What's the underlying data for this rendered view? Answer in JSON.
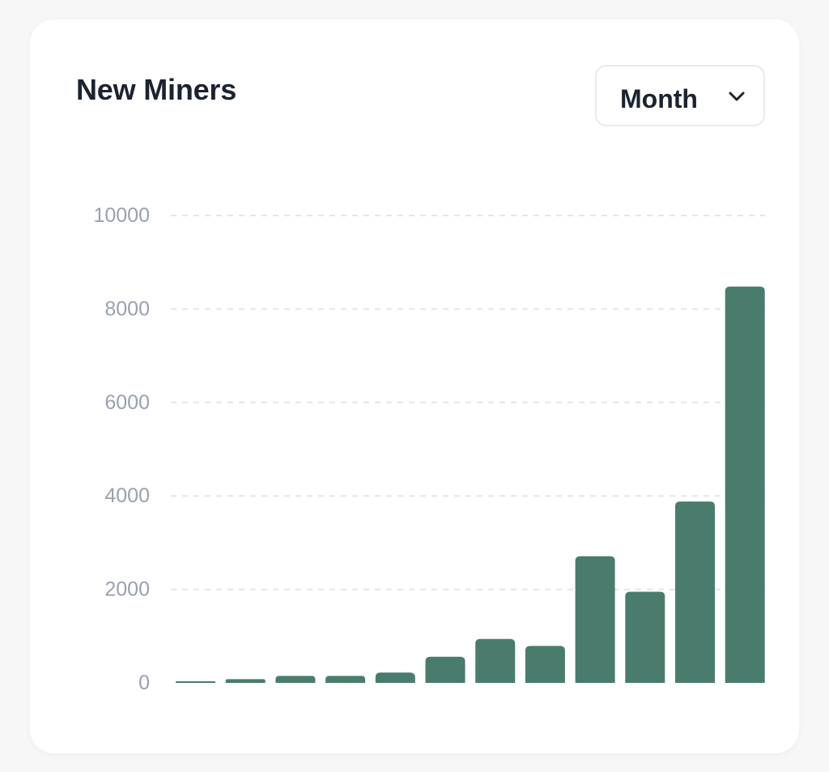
{
  "card": {
    "title": "New Miners",
    "period_select": {
      "value": "Month",
      "icon": "chevron-down-icon"
    }
  },
  "colors": {
    "bar": "#4a7c6d",
    "grid": "#e2e5ea",
    "tick": "#98a1b0",
    "title": "#1b2330"
  },
  "chart_data": {
    "type": "bar",
    "title": "New Miners",
    "categories": [
      "",
      "",
      "",
      "",
      "",
      "",
      "",
      "",
      "",
      "",
      "",
      ""
    ],
    "values": [
      20,
      80,
      150,
      150,
      220,
      560,
      940,
      790,
      2710,
      1950,
      3880,
      8480
    ],
    "yticks": [
      "0",
      "2000",
      "4000",
      "6000",
      "8000",
      "10000"
    ],
    "ylim": [
      0,
      10000
    ],
    "grid": "horizontal dashed",
    "legend": "none"
  }
}
